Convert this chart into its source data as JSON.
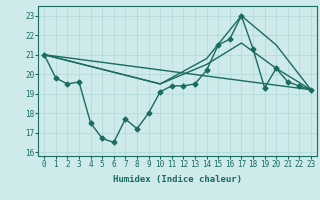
{
  "xlabel": "Humidex (Indice chaleur)",
  "xlim": [
    -0.5,
    23.5
  ],
  "ylim": [
    15.8,
    23.5
  ],
  "yticks": [
    16,
    17,
    18,
    19,
    20,
    21,
    22,
    23
  ],
  "xticks": [
    0,
    1,
    2,
    3,
    4,
    5,
    6,
    7,
    8,
    9,
    10,
    11,
    12,
    13,
    14,
    15,
    16,
    17,
    18,
    19,
    20,
    21,
    22,
    23
  ],
  "bg_color": "#ceeaea",
  "line_color": "#1a6b60",
  "grid_color": "#b0d8d8",
  "lines": [
    {
      "x": [
        0,
        1,
        2,
        3,
        4,
        5,
        6,
        7,
        8,
        9,
        10,
        11,
        12,
        13,
        14,
        15,
        16,
        17,
        18,
        19,
        20,
        21,
        22,
        23
      ],
      "y": [
        21.0,
        19.8,
        19.5,
        19.6,
        17.5,
        16.7,
        16.5,
        17.7,
        17.2,
        18.0,
        19.1,
        19.4,
        19.4,
        19.5,
        20.2,
        21.5,
        21.8,
        23.0,
        21.3,
        19.3,
        20.3,
        19.6,
        19.4,
        19.2
      ],
      "marker": "D",
      "markersize": 2.5,
      "linewidth": 1.0
    },
    {
      "x": [
        0,
        23
      ],
      "y": [
        21.0,
        19.2
      ],
      "marker": null,
      "linewidth": 1.0
    },
    {
      "x": [
        0,
        10,
        14,
        17,
        20,
        23
      ],
      "y": [
        21.0,
        19.5,
        20.5,
        21.6,
        20.3,
        19.2
      ],
      "marker": null,
      "linewidth": 1.0
    },
    {
      "x": [
        0,
        10,
        14,
        17,
        20,
        23
      ],
      "y": [
        21.0,
        19.5,
        20.8,
        23.0,
        21.5,
        19.2
      ],
      "marker": null,
      "linewidth": 1.0
    }
  ]
}
